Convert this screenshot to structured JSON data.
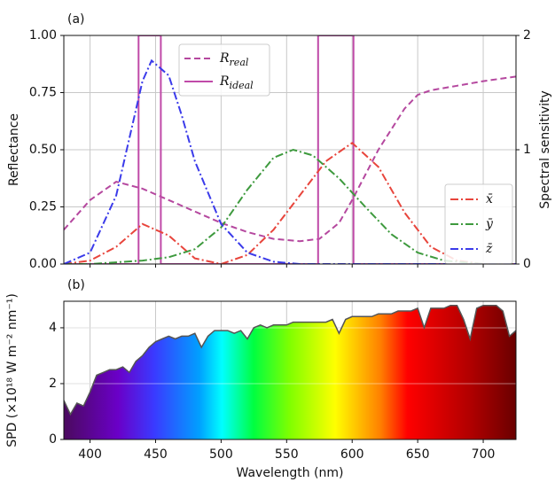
{
  "chart_data": [
    {
      "type": "line",
      "title": "(a)",
      "ylabel": "Reflectance",
      "ylabel_color": "#c04aa8",
      "y2label": "Spectral sensitivity",
      "xlim": [
        380,
        725
      ],
      "ylim": [
        0,
        1
      ],
      "y2lim": [
        0,
        2
      ],
      "grid": true,
      "yticks": [
        {
          "value": 0,
          "label": "0.00"
        },
        {
          "value": 0.25,
          "label": "0.25"
        },
        {
          "value": 0.5,
          "label": "0.50"
        },
        {
          "value": 0.75,
          "label": "0.75"
        },
        {
          "value": 1,
          "label": "1.00"
        }
      ],
      "y2ticks": [
        0,
        1,
        2
      ],
      "series": [
        {
          "name": "R",
          "subscript": "real",
          "color": "#b5489f",
          "dash": "dashed",
          "legend": "upper center",
          "x": [
            380,
            400,
            420,
            440,
            460,
            480,
            500,
            520,
            540,
            560,
            575,
            590,
            600,
            620,
            640,
            650,
            660,
            680,
            700,
            725
          ],
          "values": [
            0.15,
            0.28,
            0.36,
            0.33,
            0.28,
            0.23,
            0.18,
            0.14,
            0.11,
            0.1,
            0.11,
            0.18,
            0.28,
            0.5,
            0.68,
            0.74,
            0.76,
            0.78,
            0.8,
            0.82
          ]
        },
        {
          "name": "R",
          "subscript": "ideal",
          "color": "#c04aa8",
          "dash": "solid",
          "legend": "upper center",
          "x": [
            380,
            437,
            437,
            454,
            454,
            574,
            574,
            601,
            601,
            725
          ],
          "values": [
            0,
            0,
            1,
            1,
            0,
            0,
            1,
            1,
            0,
            0
          ]
        },
        {
          "name": "x̄",
          "color": "#e8453c",
          "dash": "dashdot",
          "axis": "y2",
          "legend": "lower right",
          "x": [
            380,
            400,
            420,
            440,
            460,
            480,
            500,
            520,
            540,
            560,
            580,
            600,
            620,
            640,
            660,
            680,
            700,
            725
          ],
          "values": [
            0,
            0.03,
            0.15,
            0.35,
            0.25,
            0.05,
            0,
            0.08,
            0.3,
            0.6,
            0.9,
            1.06,
            0.85,
            0.45,
            0.15,
            0.03,
            0,
            0
          ]
        },
        {
          "name": "ȳ",
          "color": "#3e9a3e",
          "dash": "dashdot",
          "axis": "y2",
          "legend": "lower right",
          "x": [
            380,
            400,
            440,
            460,
            480,
            500,
            520,
            540,
            555,
            570,
            590,
            610,
            630,
            650,
            670,
            700,
            725
          ],
          "values": [
            0,
            0,
            0.03,
            0.06,
            0.13,
            0.32,
            0.65,
            0.93,
            1.0,
            0.95,
            0.75,
            0.5,
            0.26,
            0.1,
            0.03,
            0,
            0
          ]
        },
        {
          "name": "z̄",
          "color": "#3b3bea",
          "dash": "dashdot",
          "axis": "y2",
          "legend": "lower right",
          "x": [
            380,
            400,
            420,
            430,
            440,
            447,
            460,
            470,
            480,
            500,
            520,
            540,
            560,
            725
          ],
          "values": [
            0,
            0.1,
            0.6,
            1.1,
            1.6,
            1.78,
            1.65,
            1.3,
            0.9,
            0.35,
            0.1,
            0.02,
            0,
            0
          ]
        }
      ]
    },
    {
      "type": "area",
      "title": "(b)",
      "ylabel": "SPD (×10¹⁸ W m⁻² nm⁻¹)",
      "xlabel": "Wavelength (nm)",
      "xlim": [
        380,
        725
      ],
      "ylim": [
        0,
        4.95
      ],
      "grid": true,
      "xticks": [
        400,
        450,
        500,
        550,
        600,
        650,
        700
      ],
      "yticks": [
        0,
        2,
        4
      ],
      "color": "#555555",
      "x": [
        380,
        385,
        390,
        395,
        400,
        405,
        410,
        415,
        420,
        425,
        430,
        435,
        440,
        445,
        450,
        455,
        460,
        465,
        470,
        475,
        480,
        485,
        490,
        495,
        500,
        505,
        510,
        515,
        520,
        525,
        530,
        535,
        540,
        545,
        550,
        555,
        560,
        565,
        570,
        575,
        580,
        585,
        590,
        595,
        600,
        605,
        610,
        615,
        620,
        625,
        630,
        635,
        640,
        645,
        650,
        655,
        660,
        665,
        670,
        675,
        680,
        685,
        690,
        695,
        700,
        705,
        710,
        715,
        720,
        725
      ],
      "values": [
        1.4,
        0.9,
        1.3,
        1.2,
        1.7,
        2.3,
        2.4,
        2.5,
        2.5,
        2.6,
        2.4,
        2.8,
        3.0,
        3.3,
        3.5,
        3.6,
        3.7,
        3.6,
        3.7,
        3.7,
        3.8,
        3.3,
        3.7,
        3.9,
        3.9,
        3.9,
        3.8,
        3.9,
        3.6,
        4.0,
        4.1,
        4.0,
        4.1,
        4.1,
        4.1,
        4.2,
        4.2,
        4.2,
        4.2,
        4.2,
        4.2,
        4.3,
        3.8,
        4.3,
        4.4,
        4.4,
        4.4,
        4.4,
        4.5,
        4.5,
        4.5,
        4.6,
        4.6,
        4.6,
        4.7,
        4.0,
        4.7,
        4.7,
        4.7,
        4.8,
        4.8,
        4.3,
        3.6,
        4.7,
        4.8,
        4.8,
        4.8,
        4.6,
        3.7,
        3.9
      ]
    }
  ]
}
